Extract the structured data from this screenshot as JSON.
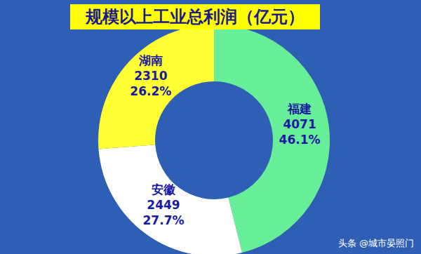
{
  "chart_data": {
    "type": "pie",
    "title": "规模以上工业总利润（亿元）",
    "categories": [
      "福建",
      "安徽",
      "湖南"
    ],
    "values": [
      46.1,
      27.7,
      26.2
    ],
    "value_labels": [
      "46.1%",
      "27.7%",
      "26.2%"
    ],
    "amounts": [
      4071,
      2449,
      2310
    ],
    "colors": [
      "#66ee99",
      "#ffffff",
      "#ffff33"
    ],
    "data_labels": true,
    "annotations": [
      "头条 @城市晏照门"
    ]
  }
}
